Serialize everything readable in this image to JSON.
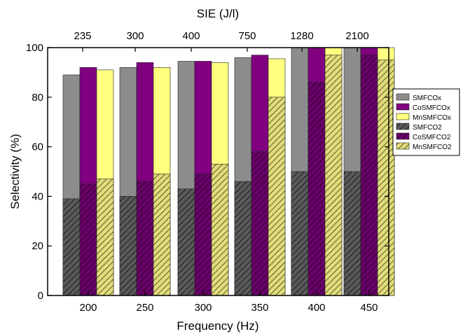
{
  "chart_data": {
    "type": "bar",
    "stacked_overlay": true,
    "xlabel": "Frequency (Hz)",
    "ylabel": "Selectivity (%)",
    "top_xlabel": "SIE (J/l)",
    "categories": [
      "200",
      "250",
      "300",
      "350",
      "400",
      "450"
    ],
    "top_categories": [
      "235",
      "300",
      "400",
      "750",
      "1280",
      "2100"
    ],
    "ylim": [
      0,
      100
    ],
    "yticks": [
      "0",
      "20",
      "40",
      "60",
      "80",
      "100"
    ],
    "grid": false,
    "legend_position": "right",
    "series": [
      {
        "name": "SMFCOx",
        "color": "#8c8c8c",
        "pattern": "solid",
        "group": 0,
        "values": [
          89,
          92,
          94.5,
          96,
          100,
          100
        ]
      },
      {
        "name": "CoSMFCOx",
        "color": "#800080",
        "pattern": "solid",
        "group": 1,
        "values": [
          92,
          94,
          94.5,
          97,
          100,
          100
        ]
      },
      {
        "name": "MnSMFCOx",
        "color": "#ffff80",
        "pattern": "solid",
        "group": 2,
        "values": [
          91,
          92,
          94,
          95.5,
          100,
          100
        ]
      },
      {
        "name": "SMFCO2",
        "color": "#555555",
        "pattern": "hatch",
        "group": 0,
        "values": [
          39,
          40,
          43,
          46,
          50,
          50
        ]
      },
      {
        "name": "CoSMFCO2",
        "color": "#660066",
        "pattern": "hatch",
        "group": 1,
        "values": [
          45,
          46,
          49,
          58,
          86,
          97
        ]
      },
      {
        "name": "MnSMFCO2",
        "color": "#d8d070",
        "pattern": "hatch",
        "group": 2,
        "values": [
          47,
          49,
          53,
          80,
          97,
          95
        ]
      }
    ]
  }
}
